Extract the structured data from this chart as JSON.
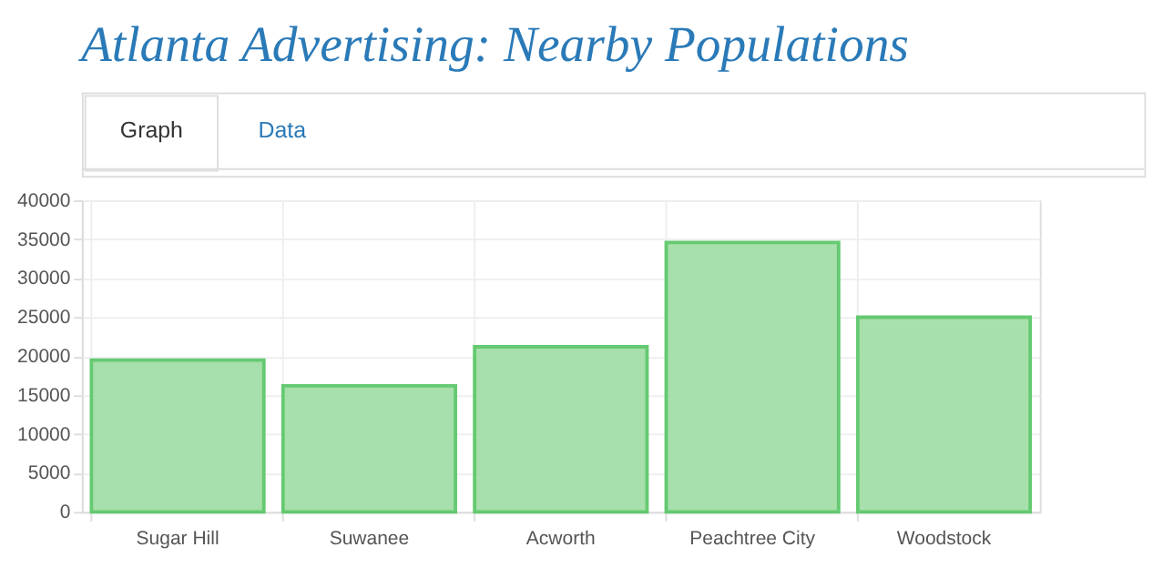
{
  "chart_data": {
    "type": "bar",
    "title": "Atlanta Advertising: Nearby Populations",
    "annotations": [
      "Graph",
      "Data"
    ],
    "categories": [
      "Sugar Hill",
      "Suwanee",
      "Acworth",
      "Peachtree City",
      "Woodstock"
    ],
    "values": [
      19500,
      16200,
      21200,
      34600,
      25000
    ],
    "color": "#a3dfa8",
    "ylim": [
      0,
      40000
    ],
    "yticks": [
      0,
      5000,
      10000,
      15000,
      20000,
      25000,
      30000,
      35000,
      40000
    ],
    "grid": true,
    "legend": false
  }
}
